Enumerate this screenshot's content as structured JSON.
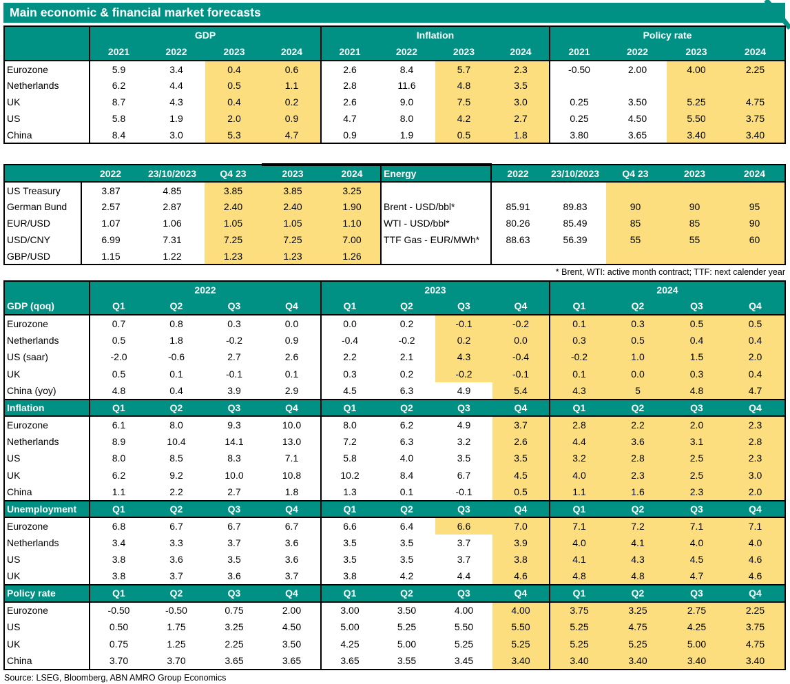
{
  "title": "Main economic & financial market forecasts",
  "energy_footnote": "* Brent, WTI: active month contract; TTF: next calender year",
  "source": "Source: LSEG, Bloomberg, ABN AMRO Group Economics",
  "colors": {
    "teal": "#009184",
    "highlight": "#FCDE7F",
    "border": "#000000",
    "text": "#000000",
    "header_text": "#FFFFFF"
  },
  "annual_table": {
    "groups": [
      {
        "label": "GDP",
        "years": [
          "2021",
          "2022",
          "2023",
          "2024"
        ]
      },
      {
        "label": "Inflation",
        "years": [
          "2021",
          "2022",
          "2023",
          "2024"
        ]
      },
      {
        "label": "Policy rate",
        "years": [
          "2021",
          "2022",
          "2023",
          "2024"
        ]
      }
    ],
    "rows": [
      {
        "label": "Eurozone",
        "values": [
          [
            "5.9",
            "3.4",
            "0.4",
            "0.6"
          ],
          [
            "2.6",
            "8.4",
            "5.7",
            "2.3"
          ],
          [
            "-0.50",
            "2.00",
            "4.00",
            "2.25"
          ]
        ]
      },
      {
        "label": "Netherlands",
        "values": [
          [
            "6.2",
            "4.4",
            "0.5",
            "1.1"
          ],
          [
            "2.8",
            "11.6",
            "4.8",
            "3.5"
          ],
          [
            "",
            "",
            "",
            ""
          ]
        ]
      },
      {
        "label": "UK",
        "values": [
          [
            "8.7",
            "4.3",
            "0.4",
            "0.2"
          ],
          [
            "2.6",
            "9.0",
            "7.5",
            "3.0"
          ],
          [
            "0.25",
            "3.50",
            "5.25",
            "4.75"
          ]
        ]
      },
      {
        "label": "US",
        "values": [
          [
            "5.8",
            "1.9",
            "2.0",
            "0.9"
          ],
          [
            "4.7",
            "8.0",
            "4.2",
            "2.7"
          ],
          [
            "0.25",
            "4.50",
            "5.50",
            "3.75"
          ]
        ]
      },
      {
        "label": "China",
        "values": [
          [
            "8.4",
            "3.0",
            "5.3",
            "4.7"
          ],
          [
            "0.9",
            "1.9",
            "0.5",
            "1.8"
          ],
          [
            "3.80",
            "3.65",
            "3.40",
            "3.40"
          ]
        ]
      }
    ]
  },
  "markets_table": {
    "left": {
      "header": [
        "",
        "2022",
        "23/10/2023",
        "Q4 23",
        "2023",
        "2024"
      ],
      "rows": [
        {
          "label": "US Treasury",
          "values": [
            "3.87",
            "4.85",
            "3.85",
            "3.85",
            "3.25"
          ]
        },
        {
          "label": "German Bund",
          "values": [
            "2.57",
            "2.87",
            "2.40",
            "2.40",
            "1.90"
          ]
        },
        {
          "label": "EUR/USD",
          "values": [
            "1.07",
            "1.06",
            "1.05",
            "1.05",
            "1.10"
          ]
        },
        {
          "label": "USD/CNY",
          "values": [
            "6.99",
            "7.31",
            "7.25",
            "7.25",
            "7.00"
          ]
        },
        {
          "label": "GBP/USD",
          "values": [
            "1.15",
            "1.22",
            "1.23",
            "1.23",
            "1.26"
          ]
        }
      ]
    },
    "right": {
      "header": [
        "Energy",
        "2022",
        "23/10/2023",
        "Q4 23",
        "2023",
        "2024"
      ],
      "rows": [
        {
          "label": "",
          "values": [
            "",
            "",
            "",
            "",
            ""
          ]
        },
        {
          "label": "Brent - USD/bbl*",
          "values": [
            "85.91",
            "89.83",
            "90",
            "90",
            "95"
          ]
        },
        {
          "label": "WTI - USD/bbl*",
          "values": [
            "80.26",
            "85.49",
            "85",
            "85",
            "90"
          ]
        },
        {
          "label": "TTF Gas - EUR/MWh*",
          "values": [
            "88.63",
            "56.39",
            "55",
            "55",
            "60"
          ]
        },
        {
          "label": "",
          "values": [
            "",
            "",
            "",
            "",
            ""
          ]
        }
      ]
    }
  },
  "quarterly_table": {
    "year_groups": [
      "2022",
      "2023",
      "2024"
    ],
    "quarter_labels": [
      "Q1",
      "Q2",
      "Q3",
      "Q4"
    ],
    "sections": [
      {
        "label": "GDP (qoq)",
        "rows": [
          {
            "label": "Eurozone",
            "y2022": [
              "0.7",
              "0.8",
              "0.3",
              "0.0"
            ],
            "y2023": [
              "0.0",
              "0.2",
              "-0.1",
              "-0.2"
            ],
            "y2024": [
              "0.1",
              "0.3",
              "0.5",
              "0.5"
            ],
            "forecast_start_2023": 2
          },
          {
            "label": "Netherlands",
            "y2022": [
              "0.5",
              "1.8",
              "-0.2",
              "0.9"
            ],
            "y2023": [
              "-0.4",
              "-0.2",
              "0.2",
              "0.0"
            ],
            "y2024": [
              "0.3",
              "0.5",
              "0.4",
              "0.4"
            ],
            "forecast_start_2023": 2
          },
          {
            "label": "US (saar)",
            "y2022": [
              "-2.0",
              "-0.6",
              "2.7",
              "2.6"
            ],
            "y2023": [
              "2.2",
              "2.1",
              "4.3",
              "-0.4"
            ],
            "y2024": [
              "-0.2",
              "1.0",
              "1.5",
              "2.0"
            ],
            "forecast_start_2023": 2
          },
          {
            "label": "UK",
            "y2022": [
              "0.5",
              "0.1",
              "-0.1",
              "0.1"
            ],
            "y2023": [
              "0.3",
              "0.2",
              "-0.2",
              "-0.1"
            ],
            "y2024": [
              "0.1",
              "0.0",
              "0.3",
              "0.4"
            ],
            "forecast_start_2023": 2
          },
          {
            "label": "China (yoy)",
            "y2022": [
              "4.8",
              "0.4",
              "3.9",
              "2.9"
            ],
            "y2023": [
              "4.5",
              "6.3",
              "4.9",
              "5.4"
            ],
            "y2024": [
              "4.3",
              "5",
              "4.8",
              "4.7"
            ],
            "forecast_start_2023": 3
          }
        ]
      },
      {
        "label": "Inflation",
        "rows": [
          {
            "label": "Eurozone",
            "y2022": [
              "6.1",
              "8.0",
              "9.3",
              "10.0"
            ],
            "y2023": [
              "8.0",
              "6.2",
              "4.9",
              "3.7"
            ],
            "y2024": [
              "2.8",
              "2.2",
              "2.0",
              "2.3"
            ],
            "forecast_start_2023": 3
          },
          {
            "label": "Netherlands",
            "y2022": [
              "8.9",
              "10.4",
              "14.1",
              "13.0"
            ],
            "y2023": [
              "7.2",
              "6.3",
              "3.2",
              "2.6"
            ],
            "y2024": [
              "4.4",
              "3.6",
              "3.1",
              "2.8"
            ],
            "forecast_start_2023": 3
          },
          {
            "label": "US",
            "y2022": [
              "8.0",
              "8.5",
              "8.3",
              "7.1"
            ],
            "y2023": [
              "5.8",
              "4.0",
              "3.5",
              "3.5"
            ],
            "y2024": [
              "3.2",
              "2.8",
              "2.5",
              "2.3"
            ],
            "forecast_start_2023": 3
          },
          {
            "label": "UK",
            "y2022": [
              "6.2",
              "9.2",
              "10.0",
              "10.8"
            ],
            "y2023": [
              "10.2",
              "8.4",
              "6.7",
              "4.5"
            ],
            "y2024": [
              "4.0",
              "2.3",
              "2.5",
              "3.0"
            ],
            "forecast_start_2023": 3
          },
          {
            "label": "China",
            "y2022": [
              "1.1",
              "2.2",
              "2.7",
              "1.8"
            ],
            "y2023": [
              "1.3",
              "0.1",
              "-0.1",
              "0.5"
            ],
            "y2024": [
              "1.1",
              "1.6",
              "2.3",
              "2.0"
            ],
            "forecast_start_2023": 3
          }
        ]
      },
      {
        "label": "Unemployment",
        "rows": [
          {
            "label": "Eurozone",
            "y2022": [
              "6.8",
              "6.7",
              "6.7",
              "6.7"
            ],
            "y2023": [
              "6.6",
              "6.4",
              "6.6",
              "7.0"
            ],
            "y2024": [
              "7.1",
              "7.2",
              "7.1",
              "7.1"
            ],
            "forecast_start_2023": 2
          },
          {
            "label": "Netherlands",
            "y2022": [
              "3.4",
              "3.3",
              "3.7",
              "3.6"
            ],
            "y2023": [
              "3.5",
              "3.5",
              "3.7",
              "3.9"
            ],
            "y2024": [
              "4.0",
              "4.1",
              "4.0",
              "4.0"
            ],
            "forecast_start_2023": 3
          },
          {
            "label": "US",
            "y2022": [
              "3.8",
              "3.6",
              "3.5",
              "3.6"
            ],
            "y2023": [
              "3.5",
              "3.5",
              "3.7",
              "3.8"
            ],
            "y2024": [
              "4.1",
              "4.3",
              "4.5",
              "4.6"
            ],
            "forecast_start_2023": 3
          },
          {
            "label": "UK",
            "y2022": [
              "3.8",
              "3.7",
              "3.6",
              "3.7"
            ],
            "y2023": [
              "3.8",
              "4.2",
              "4.4",
              "4.6"
            ],
            "y2024": [
              "4.8",
              "4.8",
              "4.7",
              "4.6"
            ],
            "forecast_start_2023": 3
          }
        ]
      },
      {
        "label": "Policy rate",
        "rows": [
          {
            "label": "Eurozone",
            "y2022": [
              "-0.50",
              "-0.50",
              "0.75",
              "2.00"
            ],
            "y2023": [
              "3.00",
              "3.50",
              "4.00",
              "4.00"
            ],
            "y2024": [
              "3.75",
              "3.25",
              "2.75",
              "2.25"
            ],
            "forecast_start_2023": 3
          },
          {
            "label": "US",
            "y2022": [
              "0.50",
              "1.75",
              "3.25",
              "4.50"
            ],
            "y2023": [
              "5.00",
              "5.25",
              "5.50",
              "5.50"
            ],
            "y2024": [
              "5.25",
              "4.75",
              "4.25",
              "3.75"
            ],
            "forecast_start_2023": 3
          },
          {
            "label": "UK",
            "y2022": [
              "0.75",
              "1.25",
              "2.25",
              "3.50"
            ],
            "y2023": [
              "4.25",
              "5.00",
              "5.25",
              "5.25"
            ],
            "y2024": [
              "5.25",
              "5.25",
              "5.00",
              "4.75"
            ],
            "forecast_start_2023": 3
          },
          {
            "label": "China",
            "y2022": [
              "3.70",
              "3.70",
              "3.65",
              "3.65"
            ],
            "y2023": [
              "3.65",
              "3.55",
              "3.45",
              "3.40"
            ],
            "y2024": [
              "3.40",
              "3.40",
              "3.40",
              "3.40"
            ],
            "forecast_start_2023": 3
          }
        ]
      }
    ]
  }
}
